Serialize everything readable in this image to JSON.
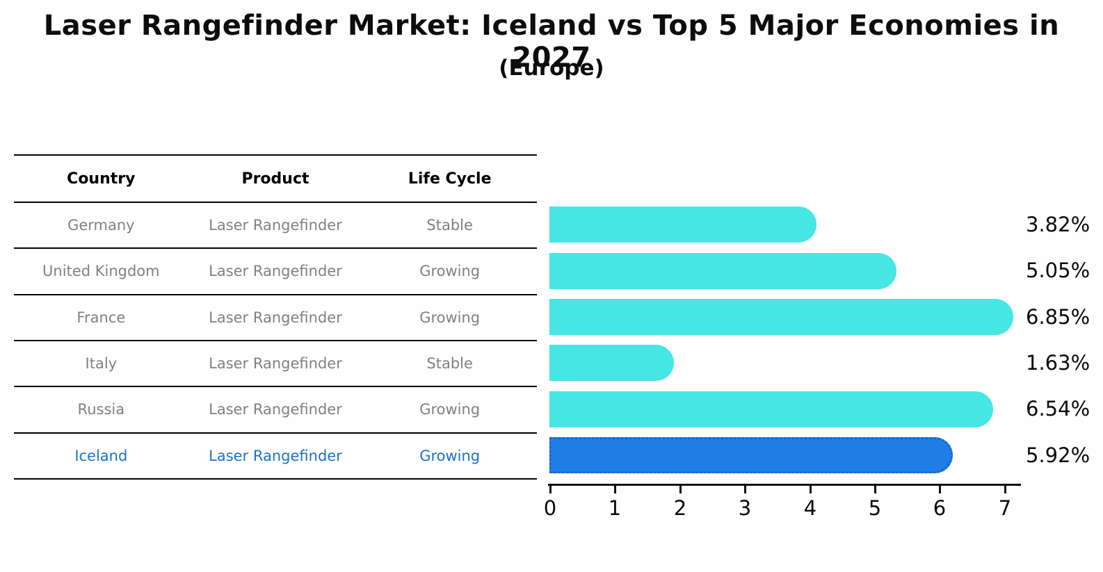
{
  "title": "Laser Rangefinder Market: Iceland vs Top 5 Major Economies in 2027",
  "subtitle": "(Europe)",
  "table": {
    "headers": [
      "Country",
      "Product",
      "Life Cycle"
    ],
    "rows": [
      [
        "Germany",
        "Laser Rangefinder",
        "Stable"
      ],
      [
        "United Kingdom",
        "Laser Rangefinder",
        "Growing"
      ],
      [
        "France",
        "Laser Rangefinder",
        "Growing"
      ],
      [
        "Italy",
        "Laser Rangefinder",
        "Stable"
      ],
      [
        "Russia",
        "Laser Rangefinder",
        "Growing"
      ],
      [
        "Iceland",
        "Laser Rangefinder",
        "Growing"
      ]
    ],
    "highlight_row_country": "Iceland"
  },
  "chart_data": {
    "type": "bar",
    "orientation": "horizontal",
    "title": "Laser Rangefinder Market: Iceland vs Top 5 Major Economies in 2027",
    "subtitle": "(Europe)",
    "categories": [
      "Germany",
      "United Kingdom",
      "France",
      "Italy",
      "Russia",
      "Iceland"
    ],
    "values": [
      3.82,
      5.05,
      6.85,
      1.63,
      6.54,
      5.92
    ],
    "value_labels": [
      "3.82%",
      "5.05%",
      "6.85%",
      "1.63%",
      "6.54%",
      "5.92%"
    ],
    "x_ticks": [
      "0",
      "1",
      "2",
      "3",
      "4",
      "5",
      "6",
      "7"
    ],
    "xlim": [
      0,
      7.3
    ],
    "grid": false,
    "legend": false,
    "highlight_index": 5
  },
  "colors": {
    "bar": "#45E6E3",
    "highlight_bar": "#1E7DE6",
    "highlight_bar_border": "#1465CE",
    "highlight_text": "#1A72C8",
    "cell_text": "#808080",
    "header_text": "#000000",
    "value_label_text": "#0a0a0a",
    "axis": "#111111",
    "background": "#fefefe"
  }
}
